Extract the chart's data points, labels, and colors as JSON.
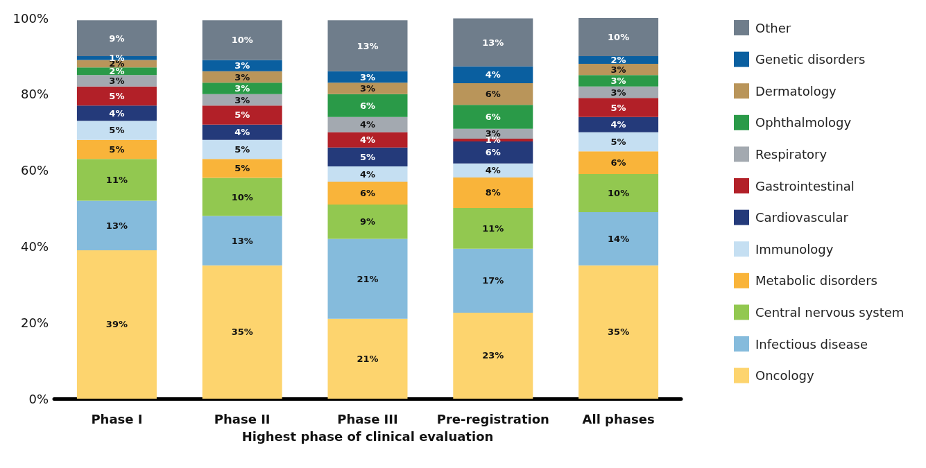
{
  "chart_data": {
    "type": "bar",
    "stacked": true,
    "xlabel": "Highest phase of clinical evaluation",
    "categories": [
      "Phase I",
      "Phase II",
      "Phase III",
      "Pre-registration",
      "All phases"
    ],
    "ylim": [
      0,
      100
    ],
    "yticks": [
      {
        "value": 0,
        "label": "0%"
      },
      {
        "value": 20,
        "label": "20%"
      },
      {
        "value": 40,
        "label": "40%"
      },
      {
        "value": 60,
        "label": "60%"
      },
      {
        "value": 80,
        "label": "80%"
      },
      {
        "value": 100,
        "label": "100%"
      }
    ],
    "grid": false,
    "legend": "right",
    "series": [
      {
        "name": "Oncology",
        "color": "#fdd46e",
        "values": [
          39,
          35,
          21,
          22.6,
          35
        ],
        "value_labels": [
          "39%",
          "35%",
          "21%",
          "23%",
          "35%"
        ]
      },
      {
        "name": "Infectious disease",
        "color": "#85bbdc",
        "values": [
          13,
          13,
          21,
          16.8,
          14
        ],
        "value_labels": [
          "13%",
          "13%",
          "21%",
          "17%",
          "14%"
        ]
      },
      {
        "name": "Central nervous system",
        "color": "#92c850",
        "values": [
          11,
          10,
          9,
          10.7,
          10
        ],
        "value_labels": [
          "11%",
          "10%",
          "9%",
          "11%",
          "10%"
        ]
      },
      {
        "name": "Metabolic disorders",
        "color": "#f9b43a",
        "values": [
          5,
          5,
          6,
          8,
          6
        ],
        "value_labels": [
          "5%",
          "5%",
          "6%",
          "8%",
          "6%"
        ]
      },
      {
        "name": "Immunology",
        "color": "#c5dff2",
        "values": [
          5,
          5,
          4,
          3.7,
          5
        ],
        "value_labels": [
          "5%",
          "5%",
          "4%",
          "4%",
          "5%"
        ]
      },
      {
        "name": "Cardiovascular",
        "color": "#243a7a",
        "values": [
          4,
          4,
          5,
          5.8,
          4
        ],
        "value_labels": [
          "4%",
          "4%",
          "5%",
          "6%",
          "4%"
        ]
      },
      {
        "name": "Gastrointestinal",
        "color": "#b22028",
        "values": [
          5,
          5,
          4,
          0.7,
          5
        ],
        "value_labels": [
          "5%",
          "5%",
          "4%",
          "1%",
          "5%"
        ]
      },
      {
        "name": "Respiratory",
        "color": "#a3a9b0",
        "values": [
          3,
          3,
          4,
          2.6,
          3
        ],
        "value_labels": [
          "3%",
          "3%",
          "4%",
          "3%",
          "3%"
        ]
      },
      {
        "name": "Ophthalmology",
        "color": "#2a9a48",
        "values": [
          2,
          3,
          6,
          6.3,
          3
        ],
        "value_labels": [
          "2%",
          "3%",
          "6%",
          "6%",
          "3%"
        ]
      },
      {
        "name": "Dermatology",
        "color": "#b9955a",
        "values": [
          2,
          3,
          3,
          5.7,
          3
        ],
        "value_labels": [
          "2%",
          "3%",
          "3%",
          "6%",
          "3%"
        ]
      },
      {
        "name": "Genetic disorders",
        "color": "#0a5fa0",
        "values": [
          1,
          3,
          3,
          4.4,
          2
        ],
        "value_labels": [
          "1%",
          "3%",
          "3%",
          "4%",
          "2%"
        ]
      },
      {
        "name": "Other",
        "color": "#6f7d8b",
        "values": [
          9.4,
          10.4,
          13.4,
          12.6,
          10
        ],
        "value_labels": [
          "9%",
          "10%",
          "13%",
          "13%",
          "10%"
        ]
      }
    ]
  }
}
